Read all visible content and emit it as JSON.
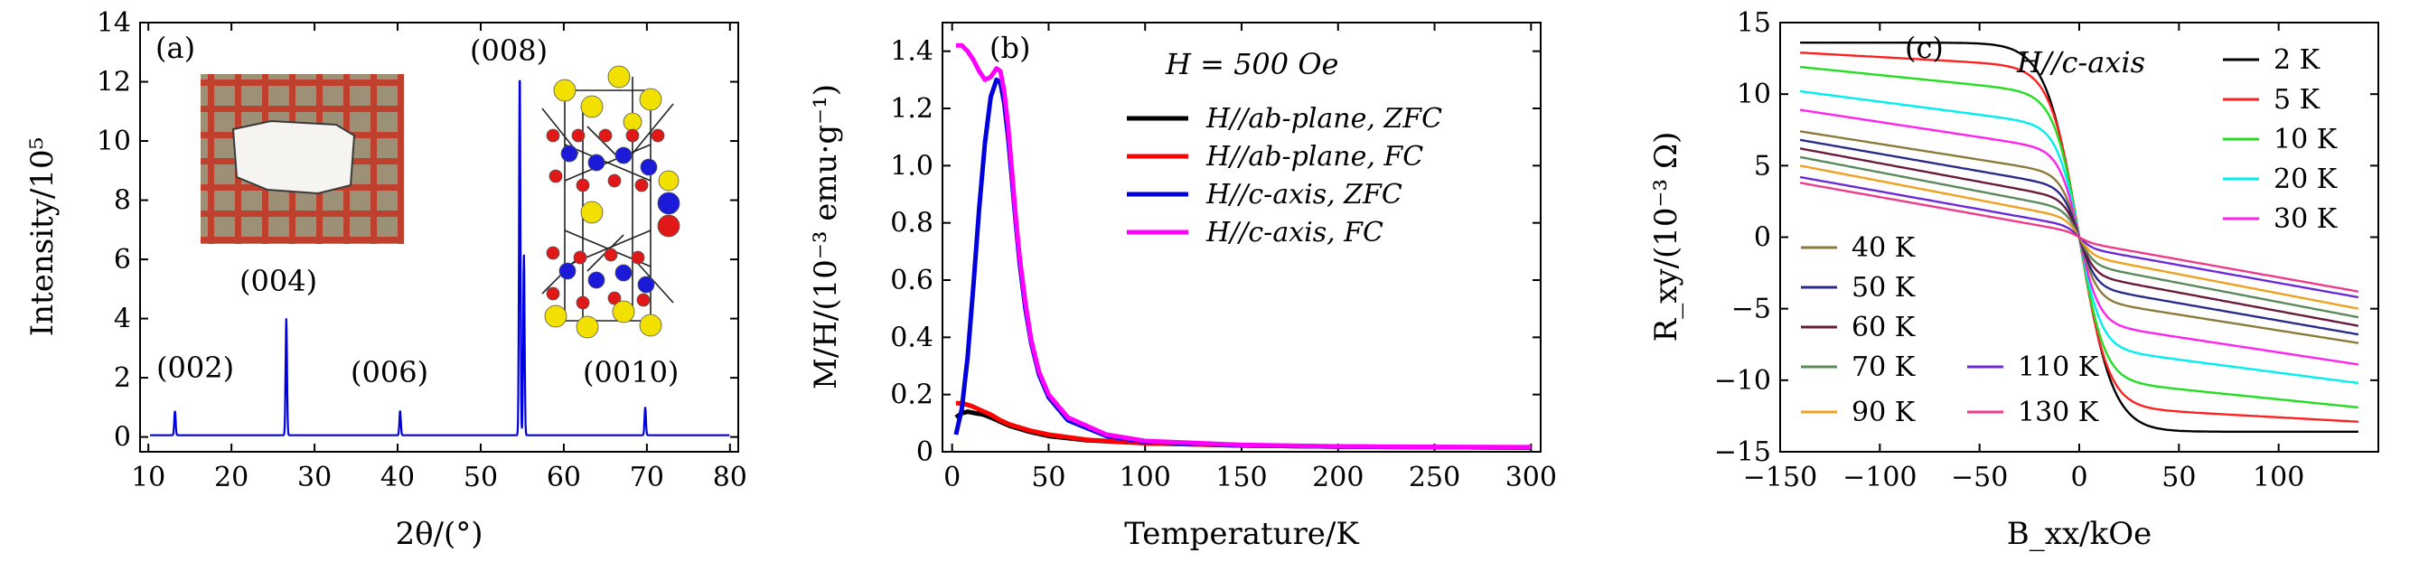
{
  "chart_data": [
    {
      "panel": "(a)",
      "type": "line",
      "xlabel": "2θ/(°)",
      "ylabel": "Intensity/10⁵",
      "xlim": [
        9,
        81
      ],
      "ylim": [
        -0.5,
        14
      ],
      "xticks": [
        10,
        20,
        30,
        40,
        50,
        60,
        70,
        80
      ],
      "yticks": [
        0,
        2,
        4,
        6,
        8,
        10,
        12,
        14
      ],
      "grid": false,
      "color": "#0000dd",
      "baseline": 0.06,
      "peaks": [
        {
          "x": 13.2,
          "y": 0.82
        },
        {
          "x": 26.6,
          "y": 3.95
        },
        {
          "x": 40.3,
          "y": 0.82
        },
        {
          "x": 54.7,
          "y": 12.3
        },
        {
          "x": 55.2,
          "y": 6.1
        },
        {
          "x": 69.8,
          "y": 0.95
        }
      ],
      "annotations": [
        "(002)",
        "(004)",
        "(006)",
        "(008)",
        "(0010)"
      ],
      "insets": [
        "crystal-photo",
        "crystal-structure"
      ],
      "atom_colors": {
        "yellow": "#f2e000",
        "blue": "#1a1ad8",
        "red": "#e01818"
      }
    },
    {
      "panel": "(b)",
      "type": "line",
      "xlabel": "Temperature/K",
      "ylabel": "M/H/(10⁻³ emu·g⁻¹)",
      "xlim": [
        -5,
        305
      ],
      "ylim": [
        0,
        1.5
      ],
      "xticks": [
        0,
        50,
        100,
        150,
        200,
        250,
        300
      ],
      "yticks": [
        0,
        0.2,
        0.4,
        0.6,
        0.8,
        1.0,
        1.2,
        1.4
      ],
      "grid": false,
      "annotation": "H = 500 Oe",
      "legend_position": "upper-right",
      "series": [
        {
          "name": "H//ab-plane, ZFC",
          "color": "#000000",
          "x": [
            2,
            5,
            8,
            12,
            16,
            20,
            25,
            30,
            40,
            50,
            70,
            100,
            150,
            200,
            250,
            300
          ],
          "y": [
            0.12,
            0.135,
            0.14,
            0.135,
            0.13,
            0.12,
            0.105,
            0.09,
            0.07,
            0.055,
            0.04,
            0.03,
            0.022,
            0.018,
            0.016,
            0.015
          ]
        },
        {
          "name": "H//ab-plane, FC",
          "color": "#ff0000",
          "x": [
            2,
            5,
            10,
            15,
            20,
            25,
            30,
            40,
            50,
            70,
            100,
            150,
            200,
            250,
            300
          ],
          "y": [
            0.17,
            0.17,
            0.16,
            0.145,
            0.13,
            0.11,
            0.095,
            0.075,
            0.06,
            0.042,
            0.03,
            0.022,
            0.018,
            0.016,
            0.015
          ]
        },
        {
          "name": "H//c-axis, ZFC",
          "color": "#0000dd",
          "x": [
            2,
            5,
            8,
            11,
            14,
            17,
            20,
            23,
            25,
            27,
            29,
            31,
            33,
            35,
            38,
            41,
            45,
            50,
            60,
            80,
            100,
            150,
            200,
            250,
            300
          ],
          "y": [
            0.06,
            0.15,
            0.33,
            0.58,
            0.85,
            1.08,
            1.24,
            1.3,
            1.29,
            1.22,
            1.1,
            0.95,
            0.8,
            0.66,
            0.5,
            0.38,
            0.27,
            0.19,
            0.11,
            0.055,
            0.035,
            0.022,
            0.018,
            0.016,
            0.015
          ]
        },
        {
          "name": "H//c-axis, FC",
          "color": "#ff00ff",
          "x": [
            2,
            5,
            8,
            11,
            14,
            17,
            20,
            23,
            25,
            27,
            29,
            31,
            33,
            35,
            38,
            41,
            45,
            50,
            60,
            80,
            100,
            150,
            200,
            250,
            300
          ],
          "y": [
            1.42,
            1.42,
            1.4,
            1.37,
            1.33,
            1.3,
            1.31,
            1.34,
            1.33,
            1.26,
            1.14,
            0.98,
            0.82,
            0.68,
            0.52,
            0.39,
            0.28,
            0.2,
            0.12,
            0.06,
            0.038,
            0.024,
            0.019,
            0.017,
            0.016
          ]
        }
      ]
    },
    {
      "panel": "(c)",
      "type": "line",
      "xlabel": "B_xx/kOe",
      "ylabel": "R_xy/(10⁻³ Ω)",
      "xlim": [
        -150,
        150
      ],
      "ylim": [
        -15,
        15
      ],
      "xticks": [
        -150,
        -100,
        -50,
        0,
        50,
        100
      ],
      "yticks": [
        -15,
        -10,
        -5,
        0,
        5,
        10,
        15
      ],
      "grid": false,
      "annotation": "H//c-axis",
      "x_range_data": [
        -140,
        140
      ],
      "series": [
        {
          "name": "2 K",
          "color": "#000000",
          "end_value": 13.6
        },
        {
          "name": "5 K",
          "color": "#ff2020",
          "end_value": 12.9
        },
        {
          "name": "10 K",
          "color": "#22dd22",
          "end_value": 11.9
        },
        {
          "name": "20 K",
          "color": "#00eeee",
          "end_value": 10.2
        },
        {
          "name": "30 K",
          "color": "#ff22ee",
          "end_value": 8.9
        },
        {
          "name": "40 K",
          "color": "#8b7a3a",
          "end_value": 7.4
        },
        {
          "name": "50 K",
          "color": "#2a2a8a",
          "end_value": 6.8
        },
        {
          "name": "60 K",
          "color": "#6a1a3a",
          "end_value": 6.2
        },
        {
          "name": "70 K",
          "color": "#5a8a5a",
          "end_value": 5.6
        },
        {
          "name": "90 K",
          "color": "#f0a020",
          "end_value": 5.0
        },
        {
          "name": "110 K",
          "color": "#6a2ad8",
          "end_value": 4.2
        },
        {
          "name": "130 K",
          "color": "#ee3a8a",
          "end_value": 3.8
        }
      ]
    }
  ]
}
